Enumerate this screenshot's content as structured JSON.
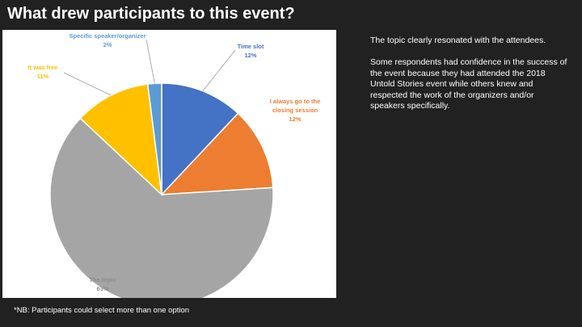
{
  "slide": {
    "title": "What drew participants to this event?",
    "footnote": "*NB: Participants could select more than one option"
  },
  "commentary": {
    "paragraph_1": "The topic clearly resonated with the attendees.",
    "paragraph_2": "Some respondents had confidence in the success of the event because they had attended the 2018 Untold Stories event while others knew and respected the work of the organizers and/or speakers specifically."
  },
  "chart_data": {
    "type": "pie",
    "title": "",
    "slices": [
      {
        "label": "Time slot",
        "percent_label": "12%",
        "value": 12,
        "color": "#4472C4"
      },
      {
        "label": "I always go to the closing session",
        "percent_label": "12%",
        "value": 12,
        "color": "#ED7D31"
      },
      {
        "label": "The topic",
        "percent_label": "63%",
        "value": 63,
        "color": "#A5A5A5"
      },
      {
        "label": "It was free",
        "percent_label": "11%",
        "value": 11,
        "color": "#FFC000"
      },
      {
        "label": "Specific speaker/organizer",
        "percent_label": "2%",
        "value": 2,
        "color": "#5B9BD5"
      }
    ],
    "start_angle_deg": 0,
    "direction": "clockwise",
    "legend": "none",
    "data_labels": "outside-with-leaders"
  }
}
